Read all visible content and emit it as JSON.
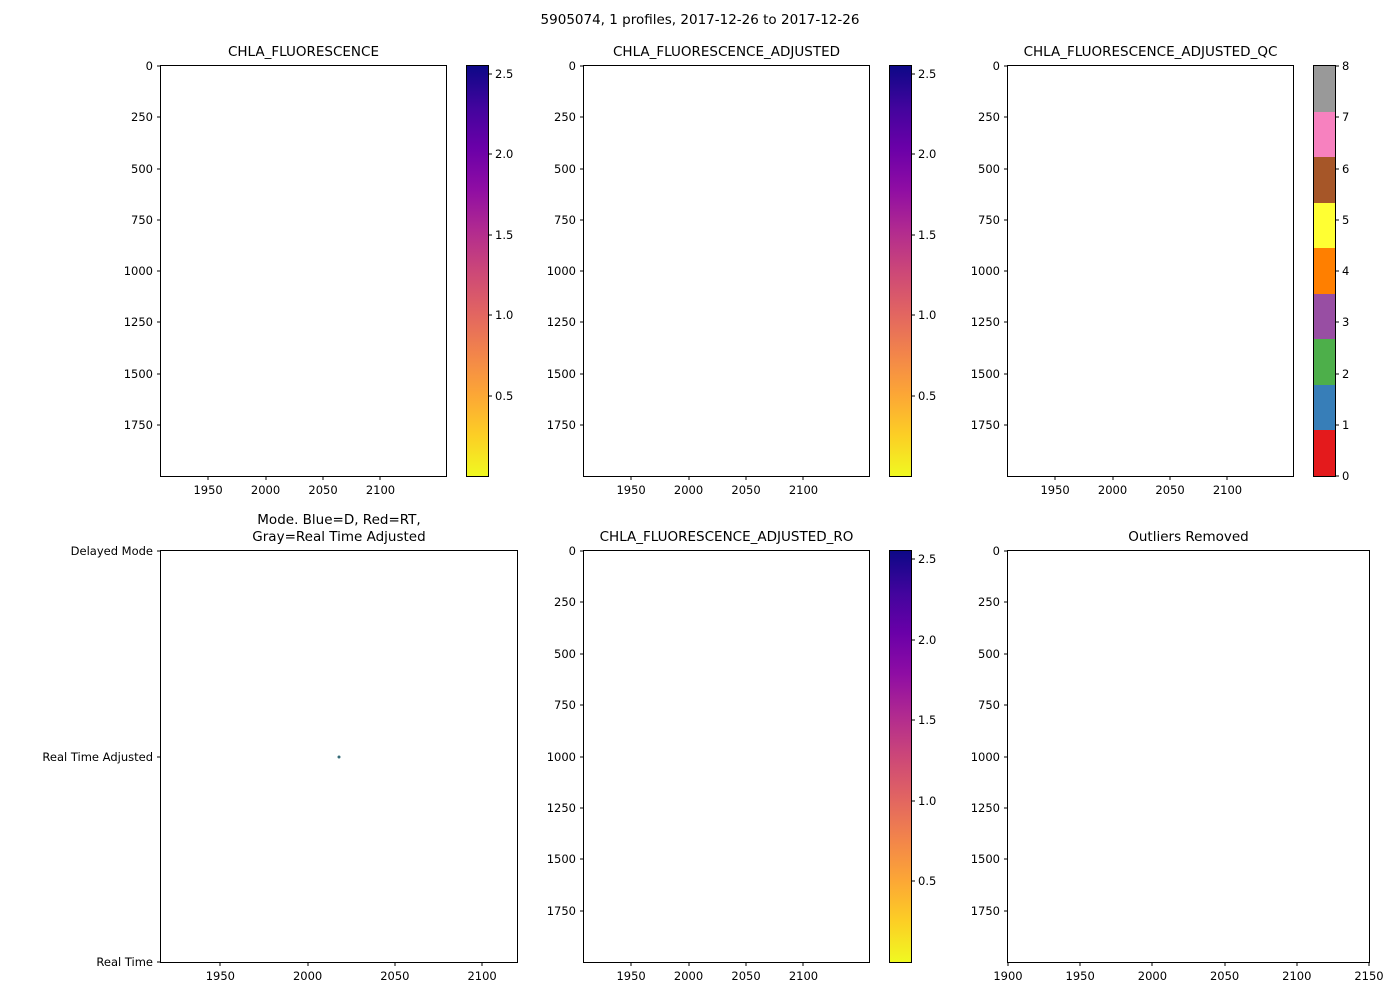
{
  "figure": {
    "suptitle": "5905074, 1 profiles, 2017-12-26 to 2017-12-26",
    "background": "#ffffff"
  },
  "colormaps": {
    "plasma_r_stops": [
      "#0d0887",
      "#41049d",
      "#6a00a8",
      "#8f0da4",
      "#b12a90",
      "#cc4778",
      "#e16462",
      "#f2844b",
      "#fca636",
      "#fcce25",
      "#f0f921"
    ],
    "qc_colors": [
      "#e41a1c",
      "#377eb8",
      "#4daf4a",
      "#984ea3",
      "#ff7f00",
      "#ffff33",
      "#a65628",
      "#f781bf",
      "#999999"
    ]
  },
  "chart_data": [
    {
      "id": "chla_fluorescence",
      "type": "scatter",
      "title": "CHLA_FLUORESCENCE",
      "xlim": [
        1909,
        2157
      ],
      "xticks": [
        1950,
        2000,
        2050,
        2100
      ],
      "ylim": [
        0,
        2000
      ],
      "yticks": [
        0,
        250,
        500,
        750,
        1000,
        1250,
        1500,
        1750
      ],
      "y_inverted": true,
      "points": [],
      "colorbar": {
        "kind": "continuous",
        "cmap": "plasma_r_stops",
        "range": [
          0,
          2.55
        ],
        "ticks": [
          0.5,
          1.0,
          1.5,
          2.0,
          2.5
        ],
        "tick_labels": [
          "0.5",
          "1.0",
          "1.5",
          "2.0",
          "2.5"
        ]
      }
    },
    {
      "id": "chla_fluorescence_adjusted",
      "type": "scatter",
      "title": "CHLA_FLUORESCENCE_ADJUSTED",
      "xlim": [
        1909,
        2157
      ],
      "xticks": [
        1950,
        2000,
        2050,
        2100
      ],
      "ylim": [
        0,
        2000
      ],
      "yticks": [
        0,
        250,
        500,
        750,
        1000,
        1250,
        1500,
        1750
      ],
      "y_inverted": true,
      "points": [],
      "colorbar": {
        "kind": "continuous",
        "cmap": "plasma_r_stops",
        "range": [
          0,
          2.55
        ],
        "ticks": [
          0.5,
          1.0,
          1.5,
          2.0,
          2.5
        ],
        "tick_labels": [
          "0.5",
          "1.0",
          "1.5",
          "2.0",
          "2.5"
        ]
      }
    },
    {
      "id": "chla_fluorescence_adjusted_qc",
      "type": "scatter",
      "title": "CHLA_FLUORESCENCE_ADJUSTED_QC",
      "xlim": [
        1909,
        2157
      ],
      "xticks": [
        1950,
        2000,
        2050,
        2100
      ],
      "ylim": [
        0,
        2000
      ],
      "yticks": [
        0,
        250,
        500,
        750,
        1000,
        1250,
        1500,
        1750
      ],
      "y_inverted": true,
      "points": [],
      "colorbar": {
        "kind": "discrete",
        "colors": "qc_colors",
        "range": [
          0,
          8
        ],
        "ticks": [
          0,
          1,
          2,
          3,
          4,
          5,
          6,
          7,
          8
        ],
        "tick_labels": [
          "0",
          "1",
          "2",
          "3",
          "4",
          "5",
          "6",
          "7",
          "8"
        ]
      }
    },
    {
      "id": "mode",
      "type": "scatter",
      "title": "Mode. Blue=D, Red=RT,\nGray=Real Time Adjusted",
      "xlim": [
        1916,
        2120
      ],
      "xticks": [
        1950,
        2000,
        2050,
        2100
      ],
      "ycategories": [
        {
          "label": "Delayed Mode",
          "frac": 0
        },
        {
          "label": "Real Time Adjusted",
          "frac": 0.5
        },
        {
          "label": "Real Time",
          "frac": 1
        }
      ],
      "points": [
        {
          "x": 2018,
          "y_frac": 0.5,
          "category": "Real Time Adjusted",
          "color": "#356b77",
          "size": 3
        }
      ]
    },
    {
      "id": "chla_fluorescence_adjusted_ro",
      "type": "scatter",
      "title": "CHLA_FLUORESCENCE_ADJUSTED_RO",
      "xlim": [
        1909,
        2157
      ],
      "xticks": [
        1950,
        2000,
        2050,
        2100
      ],
      "ylim": [
        0,
        2000
      ],
      "yticks": [
        0,
        250,
        500,
        750,
        1000,
        1250,
        1500,
        1750
      ],
      "y_inverted": true,
      "points": [],
      "colorbar": {
        "kind": "continuous",
        "cmap": "plasma_r_stops",
        "range": [
          0,
          2.55
        ],
        "ticks": [
          0.5,
          1.0,
          1.5,
          2.0,
          2.5
        ],
        "tick_labels": [
          "0.5",
          "1.0",
          "1.5",
          "2.0",
          "2.5"
        ]
      }
    },
    {
      "id": "outliers_removed",
      "type": "scatter",
      "title": "Outliers Removed",
      "xlim": [
        1900,
        2150
      ],
      "xticks": [
        1900,
        1950,
        2000,
        2050,
        2100,
        2150
      ],
      "ylim": [
        0,
        2000
      ],
      "yticks": [
        0,
        250,
        500,
        750,
        1000,
        1250,
        1500,
        1750
      ],
      "y_inverted": true,
      "points": []
    }
  ]
}
